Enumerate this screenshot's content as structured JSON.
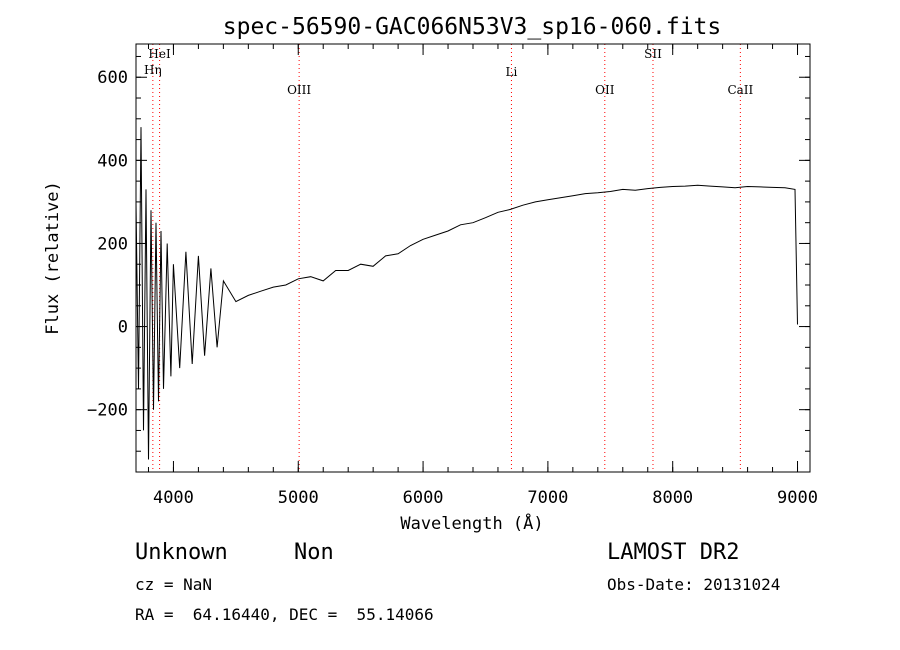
{
  "chart_data": {
    "type": "line",
    "title": "spec-56590-GAC066N53V3_sp16-060.fits",
    "xlabel": "Wavelength (Å)",
    "ylabel": "Flux (relative)",
    "xlim": [
      3700,
      9100
    ],
    "ylim": [
      -350,
      680
    ],
    "xticks": [
      4000,
      5000,
      6000,
      7000,
      8000,
      9000
    ],
    "yticks": [
      -200,
      0,
      200,
      400,
      600
    ],
    "yticks_minor_step": 50,
    "xticks_minor_step": 200,
    "grid": false,
    "series": [
      {
        "x": [
          3700,
          3720,
          3740,
          3760,
          3780,
          3800,
          3820,
          3840,
          3860,
          3880,
          3900,
          3920,
          3950,
          3980,
          4000,
          4050,
          4100,
          4150,
          4200,
          4250,
          4300,
          4350,
          4400,
          4500,
          4600,
          4700,
          4800,
          4900,
          5000,
          5100,
          5200,
          5300,
          5400,
          5500,
          5600,
          5700,
          5800,
          5900,
          6000,
          6100,
          6200,
          6300,
          6400,
          6500,
          6600,
          6700,
          6800,
          6900,
          7000,
          7100,
          7200,
          7300,
          7400,
          7500,
          7600,
          7700,
          7800,
          7900,
          8000,
          8100,
          8200,
          8300,
          8400,
          8500,
          8600,
          8700,
          8800,
          8900,
          8980,
          9000
        ],
        "y": [
          300,
          -150,
          480,
          -250,
          330,
          -320,
          280,
          -200,
          250,
          -180,
          230,
          -150,
          200,
          -120,
          150,
          -100,
          180,
          -90,
          170,
          -70,
          140,
          -50,
          110,
          60,
          75,
          85,
          95,
          100,
          115,
          120,
          110,
          135,
          135,
          150,
          145,
          170,
          175,
          195,
          210,
          220,
          230,
          245,
          250,
          262,
          275,
          282,
          292,
          300,
          305,
          310,
          315,
          320,
          322,
          325,
          330,
          328,
          332,
          335,
          337,
          338,
          340,
          338,
          336,
          334,
          337,
          336,
          335,
          334,
          330,
          5
        ]
      }
    ],
    "emission_lines": [
      {
        "name": "HeI",
        "x": 3889
      },
      {
        "name": "Hη",
        "x": 3835
      },
      {
        "name": "OIII",
        "x": 5007
      },
      {
        "name": "Li",
        "x": 6708
      },
      {
        "name": "OII",
        "x": 7456
      },
      {
        "name": "SII",
        "x": 7842
      },
      {
        "name": "CaII",
        "x": 8542
      }
    ],
    "line_color": "#000000",
    "marker_color": "#ff0000"
  },
  "info": {
    "object_class": "Unknown",
    "subclass": "Non",
    "survey": "LAMOST DR2",
    "redshift": "cz = NaN",
    "obs_date": "Obs-Date: 20131024",
    "coords": "RA =  64.16440, DEC =  55.14066"
  }
}
